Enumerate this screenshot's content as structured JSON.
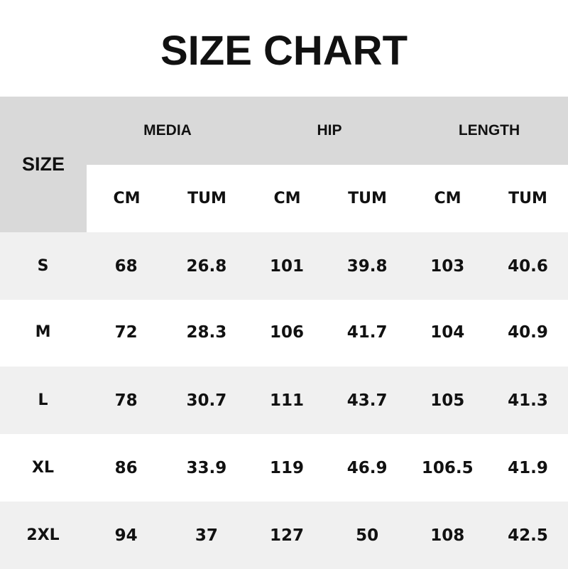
{
  "title": "SIZE CHART",
  "size_header": "SIZE",
  "groups": [
    "MEDIA",
    "HIP",
    "LENGTH"
  ],
  "units": [
    "CM",
    "TUM",
    "CM",
    "TUM",
    "CM",
    "TUM"
  ],
  "rows": [
    {
      "size": "S",
      "values": [
        "68",
        "26.8",
        "101",
        "39.8",
        "103",
        "40.6"
      ]
    },
    {
      "size": "M",
      "values": [
        "72",
        "28.3",
        "106",
        "41.7",
        "104",
        "40.9"
      ]
    },
    {
      "size": "L",
      "values": [
        "78",
        "30.7",
        "111",
        "43.7",
        "105",
        "41.3"
      ]
    },
    {
      "size": "XL",
      "values": [
        "86",
        "33.9",
        "119",
        "46.9",
        "106.5",
        "41.9"
      ]
    },
    {
      "size": "2XL",
      "values": [
        "94",
        "37",
        "127",
        "50",
        "108",
        "42.5"
      ]
    }
  ],
  "colors": {
    "header": "#d9d9d9",
    "alt_row": "#f0f0f0"
  }
}
